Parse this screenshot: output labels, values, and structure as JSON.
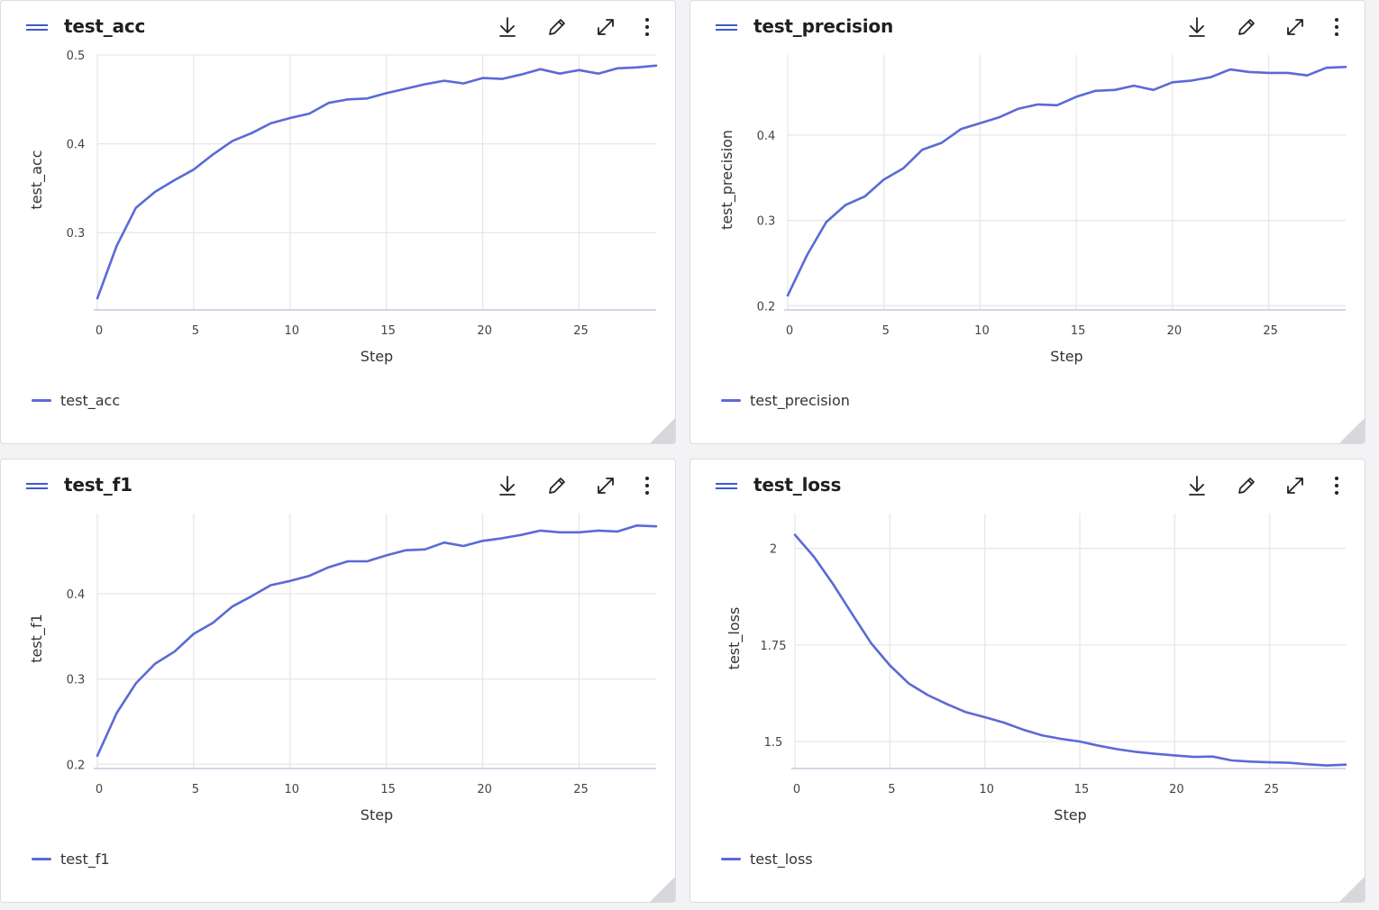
{
  "style": {
    "line_color": "#5b6ad6",
    "grid_color": "#e6e6ea",
    "axis_color": "#b8bfd8",
    "accent": "#3a5bd0"
  },
  "toolbar": {
    "icons": [
      "download-icon",
      "edit-pencil-icon",
      "expand-icon",
      "more-vertical-icon"
    ]
  },
  "panels": [
    {
      "title": "test_acc",
      "legend": "test_acc"
    },
    {
      "title": "test_precision",
      "legend": "test_precision"
    },
    {
      "title": "test_f1",
      "legend": "test_f1"
    },
    {
      "title": "test_loss",
      "legend": "test_loss"
    }
  ],
  "chart_data": [
    {
      "type": "line",
      "title": "test_acc",
      "xlabel": "Step",
      "ylabel": "test_acc",
      "xlim": [
        0,
        29
      ],
      "ylim": [
        0.213,
        0.5
      ],
      "xticks": [
        0,
        5,
        10,
        15,
        20,
        25
      ],
      "yticks": [
        0.3,
        0.4,
        0.5
      ],
      "ytick_labels": [
        "0.3",
        "0.4",
        "0.5"
      ],
      "grid": true,
      "legend_position": "bottom-left",
      "series": [
        {
          "name": "test_acc",
          "x": [
            0,
            1,
            2,
            3,
            4,
            5,
            6,
            7,
            8,
            9,
            10,
            11,
            12,
            13,
            14,
            15,
            16,
            17,
            18,
            19,
            20,
            21,
            22,
            23,
            24,
            25,
            26,
            27,
            28,
            29
          ],
          "y": [
            0.226,
            0.285,
            0.328,
            0.346,
            0.359,
            0.371,
            0.388,
            0.403,
            0.412,
            0.423,
            0.429,
            0.434,
            0.446,
            0.45,
            0.451,
            0.457,
            0.462,
            0.467,
            0.471,
            0.468,
            0.474,
            0.473,
            0.478,
            0.484,
            0.479,
            0.483,
            0.479,
            0.485,
            0.486,
            0.488
          ]
        }
      ]
    },
    {
      "type": "line",
      "title": "test_precision",
      "xlabel": "Step",
      "ylabel": "test_precision",
      "xlim": [
        0,
        29
      ],
      "ylim": [
        0.195,
        0.494
      ],
      "xticks": [
        0,
        5,
        10,
        15,
        20,
        25
      ],
      "yticks": [
        0.2,
        0.3,
        0.4
      ],
      "ytick_labels": [
        "0.2",
        "0.3",
        "0.4"
      ],
      "grid": true,
      "legend_position": "bottom-left",
      "series": [
        {
          "name": "test_precision",
          "x": [
            0,
            1,
            2,
            3,
            4,
            5,
            6,
            7,
            8,
            9,
            10,
            11,
            12,
            13,
            14,
            15,
            16,
            17,
            18,
            19,
            20,
            21,
            22,
            23,
            24,
            25,
            26,
            27,
            28,
            29
          ],
          "y": [
            0.212,
            0.259,
            0.298,
            0.318,
            0.328,
            0.348,
            0.361,
            0.383,
            0.391,
            0.407,
            0.414,
            0.421,
            0.431,
            0.436,
            0.435,
            0.445,
            0.452,
            0.453,
            0.458,
            0.453,
            0.462,
            0.464,
            0.468,
            0.477,
            0.474,
            0.473,
            0.473,
            0.47,
            0.479,
            0.48
          ]
        }
      ]
    },
    {
      "type": "line",
      "title": "test_f1",
      "xlabel": "Step",
      "ylabel": "test_f1",
      "xlim": [
        0,
        29
      ],
      "ylim": [
        0.195,
        0.494
      ],
      "xticks": [
        0,
        5,
        10,
        15,
        20,
        25
      ],
      "yticks": [
        0.2,
        0.3,
        0.4
      ],
      "ytick_labels": [
        "0.2",
        "0.3",
        "0.4"
      ],
      "grid": true,
      "legend_position": "bottom-left",
      "series": [
        {
          "name": "test_f1",
          "x": [
            0,
            1,
            2,
            3,
            4,
            5,
            6,
            7,
            8,
            9,
            10,
            11,
            12,
            13,
            14,
            15,
            16,
            17,
            18,
            19,
            20,
            21,
            22,
            23,
            24,
            25,
            26,
            27,
            28,
            29
          ],
          "y": [
            0.21,
            0.26,
            0.295,
            0.318,
            0.332,
            0.353,
            0.366,
            0.385,
            0.397,
            0.41,
            0.415,
            0.421,
            0.431,
            0.438,
            0.438,
            0.445,
            0.451,
            0.452,
            0.46,
            0.456,
            0.462,
            0.465,
            0.469,
            0.474,
            0.472,
            0.472,
            0.474,
            0.473,
            0.48,
            0.479
          ]
        }
      ]
    },
    {
      "type": "line",
      "title": "test_loss",
      "xlabel": "Step",
      "ylabel": "test_loss",
      "xlim": [
        0,
        29
      ],
      "ylim": [
        1.43,
        2.09
      ],
      "xticks": [
        0,
        5,
        10,
        15,
        20,
        25
      ],
      "yticks": [
        1.5,
        1.75,
        2
      ],
      "ytick_labels": [
        "1.5",
        "1.75",
        "2"
      ],
      "grid": true,
      "legend_position": "bottom-left",
      "series": [
        {
          "name": "test_loss",
          "x": [
            0,
            1,
            2,
            3,
            4,
            5,
            6,
            7,
            8,
            9,
            10,
            11,
            12,
            13,
            14,
            15,
            16,
            17,
            18,
            19,
            20,
            21,
            22,
            23,
            24,
            25,
            26,
            27,
            28,
            29
          ],
          "y": [
            2.035,
            1.978,
            1.908,
            1.831,
            1.755,
            1.697,
            1.65,
            1.62,
            1.597,
            1.576,
            1.563,
            1.549,
            1.531,
            1.516,
            1.507,
            1.5,
            1.489,
            1.48,
            1.473,
            1.468,
            1.464,
            1.46,
            1.461,
            1.451,
            1.448,
            1.446,
            1.445,
            1.441,
            1.438,
            1.44
          ]
        }
      ]
    }
  ]
}
